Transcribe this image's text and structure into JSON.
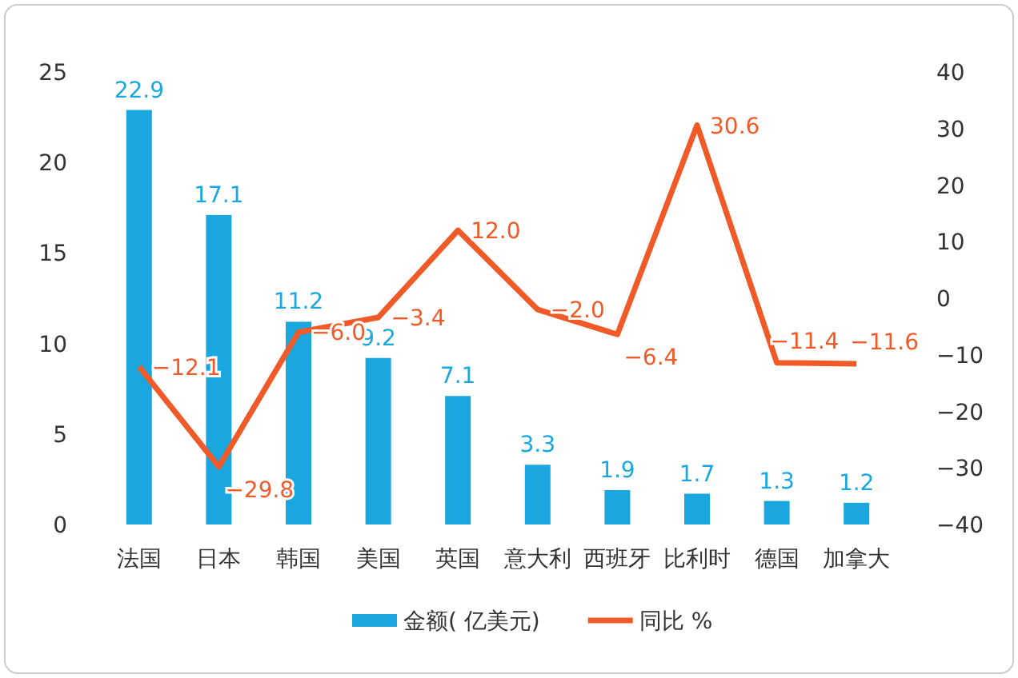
{
  "chart_data": {
    "type": "bar",
    "categories": [
      "法国",
      "日本",
      "韩国",
      "美国",
      "英国",
      "意大利",
      "西班牙",
      "比利时",
      "德国",
      "加拿大"
    ],
    "series": [
      {
        "name": "金额( 亿美元)",
        "color": "#1aa7e0",
        "values": [
          22.9,
          17.1,
          11.2,
          9.2,
          7.1,
          3.3,
          1.9,
          1.7,
          1.3,
          1.2
        ],
        "value_labels": [
          "22.9",
          "17.1",
          "11.2",
          "9.2",
          "7.1",
          "3.3",
          "1.9",
          "1.7",
          "1.3",
          "1.2"
        ]
      },
      {
        "name": "同比 %",
        "type": "line",
        "axis": "y2",
        "color": "#f05a28",
        "values": [
          -12.1,
          -29.8,
          -6.0,
          -3.4,
          12.0,
          -2.0,
          -6.4,
          30.6,
          -11.4,
          -11.6
        ],
        "value_labels": [
          "−12.1",
          "−29.8",
          "−6.0",
          "−3.4",
          "12.0",
          "−2.0",
          "−6.4",
          "30.6",
          "−11.4",
          "−11.6"
        ]
      }
    ],
    "ylim": [
      0,
      25
    ],
    "yticks": [
      0,
      5,
      10,
      15,
      20,
      25
    ],
    "y2lim": [
      -40,
      40
    ],
    "y2ticks": [
      {
        "value": -40,
        "label": "−40"
      },
      {
        "value": -30,
        "label": "−30"
      },
      {
        "value": -20,
        "label": "−20"
      },
      {
        "value": -10,
        "label": "−10"
      },
      0,
      10,
      20,
      30,
      40
    ],
    "legend": "bottom",
    "grid": false
  }
}
